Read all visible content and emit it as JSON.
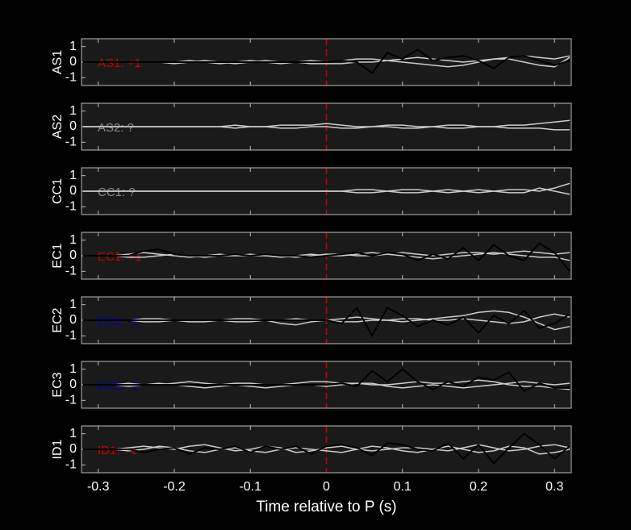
{
  "chart_data": [
    {
      "type": "line",
      "ylabel": "AS1",
      "annotation": "AS1: +1",
      "annotation_color": "#cc0000",
      "vline": 0,
      "vline_color": "#cc0000",
      "xlim": [
        -0.322,
        0.322
      ],
      "ylim": [
        -1.5,
        1.5
      ],
      "yticks": [
        -1,
        0,
        1
      ],
      "xticks": [
        -0.3,
        -0.2,
        -0.1,
        0,
        0.1,
        0.2,
        0.3
      ],
      "x": [
        -0.32,
        -0.3,
        -0.28,
        -0.26,
        -0.24,
        -0.22,
        -0.2,
        -0.18,
        -0.16,
        -0.14,
        -0.12,
        -0.1,
        -0.08,
        -0.06,
        -0.04,
        -0.02,
        0,
        0.02,
        0.04,
        0.06,
        0.08,
        0.1,
        0.12,
        0.14,
        0.16,
        0.18,
        0.2,
        0.22,
        0.24,
        0.26,
        0.28,
        0.3,
        0.32
      ],
      "series": [
        {
          "color": "#cccccc",
          "values": [
            0,
            0,
            0,
            0,
            0,
            0,
            0,
            0.1,
            0,
            -0.1,
            0,
            0.1,
            0,
            -0.1,
            0,
            0.1,
            0,
            0.1,
            0.2,
            0.2,
            0.1,
            0,
            -0.1,
            -0.2,
            -0.3,
            -0.2,
            0,
            0.2,
            0.2,
            0,
            -0.2,
            -0.3,
            0.3
          ]
        },
        {
          "color": "#cccccc",
          "values": [
            0,
            0,
            0,
            0,
            0,
            0,
            -0.1,
            0,
            0.1,
            0,
            -0.1,
            0,
            0.1,
            0,
            0,
            -0.1,
            -0.1,
            -0.1,
            0,
            0,
            0.1,
            0.2,
            0.3,
            0.2,
            0.1,
            0,
            0.1,
            0.2,
            0.3,
            0.4,
            0.3,
            0.2,
            0.4
          ]
        },
        {
          "color": "#000000",
          "values": [
            0,
            0,
            0,
            0,
            0,
            0,
            0,
            0,
            0,
            0,
            0,
            0,
            0,
            0,
            0,
            0,
            0,
            0.1,
            0,
            -0.7,
            0.6,
            0.2,
            0.8,
            0.1,
            0.3,
            0.4,
            0.1,
            -0.4,
            0.3,
            0.4,
            0.1,
            -0.2,
            0.1
          ]
        }
      ]
    },
    {
      "type": "line",
      "ylabel": "AS2",
      "annotation": "AS2: ?",
      "annotation_color": "#888888",
      "vline": 0,
      "vline_color": "#cc0000",
      "xlim": [
        -0.322,
        0.322
      ],
      "ylim": [
        -1.5,
        1.5
      ],
      "yticks": [
        -1,
        0,
        1
      ],
      "xticks": [
        -0.3,
        -0.2,
        -0.1,
        0,
        0.1,
        0.2,
        0.3
      ],
      "x": [
        -0.32,
        -0.3,
        -0.28,
        -0.26,
        -0.24,
        -0.22,
        -0.2,
        -0.18,
        -0.16,
        -0.14,
        -0.12,
        -0.1,
        -0.08,
        -0.06,
        -0.04,
        -0.02,
        0,
        0.02,
        0.04,
        0.06,
        0.08,
        0.1,
        0.12,
        0.14,
        0.16,
        0.18,
        0.2,
        0.22,
        0.24,
        0.26,
        0.28,
        0.3,
        0.32
      ],
      "series": [
        {
          "color": "#cccccc",
          "values": [
            0,
            0,
            0,
            0,
            0,
            0,
            0,
            0,
            0,
            0,
            0.1,
            0,
            0,
            0.1,
            0.1,
            0.1,
            0.2,
            0.1,
            0,
            0,
            0.1,
            0.1,
            0,
            0,
            0.1,
            0.1,
            0,
            0,
            0.1,
            0.1,
            0.2,
            0.3,
            0.4
          ]
        },
        {
          "color": "#cccccc",
          "values": [
            0,
            0,
            0,
            0,
            0,
            0,
            0,
            0,
            0,
            0,
            -0.1,
            0,
            0,
            -0.1,
            -0.1,
            0,
            0,
            -0.1,
            -0.1,
            0,
            0,
            -0.1,
            -0.1,
            0,
            -0.1,
            -0.1,
            0,
            0,
            -0.1,
            -0.1,
            -0.1,
            -0.2,
            -0.2
          ]
        }
      ]
    },
    {
      "type": "line",
      "ylabel": "CC1",
      "annotation": "CC1: ?",
      "annotation_color": "#888888",
      "vline": 0,
      "vline_color": "#cc0000",
      "xlim": [
        -0.322,
        0.322
      ],
      "ylim": [
        -1.5,
        1.5
      ],
      "yticks": [
        -1,
        0,
        1
      ],
      "xticks": [
        -0.3,
        -0.2,
        -0.1,
        0,
        0.1,
        0.2,
        0.3
      ],
      "x": [
        -0.32,
        -0.3,
        -0.28,
        -0.26,
        -0.24,
        -0.22,
        -0.2,
        -0.18,
        -0.16,
        -0.14,
        -0.12,
        -0.1,
        -0.08,
        -0.06,
        -0.04,
        -0.02,
        0,
        0.02,
        0.04,
        0.06,
        0.08,
        0.1,
        0.12,
        0.14,
        0.16,
        0.18,
        0.2,
        0.22,
        0.24,
        0.26,
        0.28,
        0.3,
        0.32
      ],
      "series": [
        {
          "color": "#cccccc",
          "values": [
            0,
            0,
            0,
            0,
            0,
            0,
            0,
            0,
            0,
            0,
            0,
            0,
            0,
            0,
            0,
            0,
            0,
            0,
            0.1,
            0.1,
            0,
            -0.1,
            -0.1,
            0,
            0.1,
            0,
            -0.1,
            0,
            0.1,
            0.1,
            0,
            0.2,
            0.5
          ]
        },
        {
          "color": "#cccccc",
          "values": [
            0,
            0,
            0,
            0,
            0,
            0,
            0,
            0,
            0,
            0,
            0,
            0,
            0,
            0,
            0,
            0,
            0,
            0,
            -0.1,
            -0.1,
            0,
            0.1,
            0.1,
            0,
            -0.1,
            0,
            0.1,
            0,
            -0.1,
            -0.1,
            0.2,
            0,
            -0.2
          ]
        }
      ]
    },
    {
      "type": "line",
      "ylabel": "EC1",
      "annotation": "EC1: +1",
      "annotation_color": "#cc0000",
      "vline": 0,
      "vline_color": "#cc0000",
      "xlim": [
        -0.322,
        0.322
      ],
      "ylim": [
        -1.5,
        1.5
      ],
      "yticks": [
        -1,
        0,
        1
      ],
      "xticks": [
        -0.3,
        -0.2,
        -0.1,
        0,
        0.1,
        0.2,
        0.3
      ],
      "x": [
        -0.32,
        -0.3,
        -0.28,
        -0.26,
        -0.24,
        -0.22,
        -0.2,
        -0.18,
        -0.16,
        -0.14,
        -0.12,
        -0.1,
        -0.08,
        -0.06,
        -0.04,
        -0.02,
        0,
        0.02,
        0.04,
        0.06,
        0.08,
        0.1,
        0.12,
        0.14,
        0.16,
        0.18,
        0.2,
        0.22,
        0.24,
        0.26,
        0.28,
        0.3,
        0.32
      ],
      "series": [
        {
          "color": "#cccccc",
          "values": [
            0,
            0,
            0,
            0.1,
            0.2,
            0.1,
            0,
            -0.1,
            0,
            0.1,
            0,
            0,
            0,
            -0.1,
            0,
            0.1,
            0,
            0,
            0.1,
            0.2,
            0.1,
            0,
            -0.1,
            -0.2,
            -0.1,
            0,
            0.1,
            0.2,
            0.1,
            0,
            -0.1,
            -0.1,
            -0.3
          ]
        },
        {
          "color": "#cccccc",
          "values": [
            0,
            0,
            0,
            -0.1,
            -0.1,
            0,
            0.1,
            0,
            -0.1,
            0,
            0,
            0.1,
            0,
            0,
            -0.1,
            0,
            0.1,
            0.1,
            0,
            0,
            0.1,
            0.2,
            0.1,
            0,
            0.1,
            0.2,
            0.2,
            0.1,
            0.2,
            0.3,
            0.2,
            0.1,
            0.2
          ]
        },
        {
          "color": "#000000",
          "values": [
            0,
            0,
            0,
            0,
            0.3,
            0.4,
            0.1,
            0,
            0,
            0,
            0.1,
            0,
            0.1,
            0,
            0,
            -0.1,
            0,
            0.1,
            0.2,
            0,
            0.2,
            0.1,
            -0.3,
            0.1,
            -0.2,
            0.5,
            -0.3,
            0.7,
            0,
            -0.3,
            0.8,
            0.2,
            -1.0
          ]
        }
      ]
    },
    {
      "type": "line",
      "ylabel": "EC2",
      "annotation": "EC2: -1",
      "annotation_color": "#0000aa",
      "vline": 0,
      "vline_color": "#cc0000",
      "xlim": [
        -0.322,
        0.322
      ],
      "ylim": [
        -1.5,
        1.5
      ],
      "yticks": [
        -1,
        0,
        1
      ],
      "xticks": [
        -0.3,
        -0.2,
        -0.1,
        0,
        0.1,
        0.2,
        0.3
      ],
      "x": [
        -0.32,
        -0.3,
        -0.28,
        -0.26,
        -0.24,
        -0.22,
        -0.2,
        -0.18,
        -0.16,
        -0.14,
        -0.12,
        -0.1,
        -0.08,
        -0.06,
        -0.04,
        -0.02,
        0,
        0.02,
        0.04,
        0.06,
        0.08,
        0.1,
        0.12,
        0.14,
        0.16,
        0.18,
        0.2,
        0.22,
        0.24,
        0.26,
        0.28,
        0.3,
        0.32
      ],
      "series": [
        {
          "color": "#cccccc",
          "values": [
            0,
            0,
            0,
            0,
            0.1,
            0.1,
            0,
            -0.1,
            -0.1,
            0,
            0.1,
            0.1,
            0,
            -0.2,
            -0.3,
            -0.1,
            0,
            0.1,
            0.2,
            0.1,
            0,
            -0.1,
            0,
            0.1,
            0.2,
            0.3,
            0.5,
            0.6,
            0.5,
            0.2,
            -0.2,
            -0.6,
            -0.4
          ]
        },
        {
          "color": "#cccccc",
          "values": [
            0,
            0,
            0,
            0,
            -0.1,
            -0.1,
            0,
            0,
            0,
            0,
            -0.1,
            -0.1,
            0,
            0,
            0.1,
            0,
            0,
            -0.1,
            -0.1,
            0,
            0,
            0.1,
            0.1,
            0,
            0,
            0.1,
            0,
            -0.1,
            -0.2,
            -0.1,
            0.2,
            0.4,
            0.2
          ]
        },
        {
          "color": "#000000",
          "values": [
            0,
            0,
            0,
            0,
            0,
            0,
            0,
            0,
            0,
            0,
            0,
            0,
            0,
            0,
            0,
            0,
            0,
            -0.2,
            0.8,
            -1.0,
            0.8,
            0.3,
            -0.4,
            0,
            -0.3,
            0.2,
            -0.8,
            0.3,
            -0.2,
            0.6,
            -0.5,
            -0.2,
            0.4
          ]
        }
      ]
    },
    {
      "type": "line",
      "ylabel": "EC3",
      "annotation": "EC3: -1",
      "annotation_color": "#0000aa",
      "vline": 0,
      "vline_color": "#cc0000",
      "xlim": [
        -0.322,
        0.322
      ],
      "ylim": [
        -1.5,
        1.5
      ],
      "yticks": [
        -1,
        0,
        1
      ],
      "xticks": [
        -0.3,
        -0.2,
        -0.1,
        0,
        0.1,
        0.2,
        0.3
      ],
      "x": [
        -0.32,
        -0.3,
        -0.28,
        -0.26,
        -0.24,
        -0.22,
        -0.2,
        -0.18,
        -0.16,
        -0.14,
        -0.12,
        -0.1,
        -0.08,
        -0.06,
        -0.04,
        -0.02,
        0,
        0.02,
        0.04,
        0.06,
        0.08,
        0.1,
        0.12,
        0.14,
        0.16,
        0.18,
        0.2,
        0.22,
        0.24,
        0.26,
        0.28,
        0.3,
        0.32
      ],
      "series": [
        {
          "color": "#cccccc",
          "values": [
            0,
            0,
            0,
            0.1,
            0,
            0,
            0.1,
            0.2,
            0.1,
            0,
            0.1,
            0.1,
            0,
            0,
            0.1,
            0.2,
            0.2,
            0.1,
            0.1,
            0,
            0,
            0.1,
            0.2,
            0.1,
            0.1,
            0.2,
            0.3,
            0.2,
            0,
            -0.1,
            -0.1,
            -0.2,
            -0.3
          ]
        },
        {
          "color": "#cccccc",
          "values": [
            0,
            0,
            0,
            -0.1,
            0,
            0.1,
            0,
            -0.1,
            -0.2,
            -0.1,
            0,
            -0.1,
            -0.2,
            -0.1,
            0,
            0,
            -0.1,
            0,
            0.1,
            0.1,
            -0.1,
            -0.2,
            -0.1,
            0,
            -0.1,
            -0.2,
            -0.1,
            0,
            0.1,
            0.2,
            0.1,
            0,
            0.1
          ]
        },
        {
          "color": "#000000",
          "values": [
            0,
            0,
            0,
            0,
            0,
            0,
            0,
            0,
            0,
            0,
            0,
            0,
            0,
            0,
            0,
            0,
            0,
            0.1,
            -0.1,
            0.9,
            0.2,
            1.0,
            0.2,
            -0.3,
            0.2,
            -0.1,
            0.5,
            0.3,
            0.8,
            -0.4,
            0.1,
            -0.2,
            -0.2
          ]
        }
      ]
    },
    {
      "type": "line",
      "ylabel": "ID1",
      "annotation": "ID1: +1",
      "annotation_color": "#cc0000",
      "vline": 0,
      "vline_color": "#cc0000",
      "xlim": [
        -0.322,
        0.322
      ],
      "ylim": [
        -1.5,
        1.5
      ],
      "yticks": [
        -1,
        0,
        1
      ],
      "xticks": [
        -0.3,
        -0.2,
        -0.1,
        0,
        0.1,
        0.2,
        0.3
      ],
      "xlabel": "Time relative to P (s)",
      "x": [
        -0.32,
        -0.3,
        -0.28,
        -0.26,
        -0.24,
        -0.22,
        -0.2,
        -0.18,
        -0.16,
        -0.14,
        -0.12,
        -0.1,
        -0.08,
        -0.06,
        -0.04,
        -0.02,
        0,
        0.02,
        0.04,
        0.06,
        0.08,
        0.1,
        0.12,
        0.14,
        0.16,
        0.18,
        0.2,
        0.22,
        0.24,
        0.26,
        0.28,
        0.3,
        0.32
      ],
      "series": [
        {
          "color": "#cccccc",
          "values": [
            0,
            0,
            0,
            0.1,
            0.2,
            0.1,
            0,
            0.2,
            0.3,
            0.1,
            -0.1,
            0,
            0.2,
            0.1,
            -0.2,
            -0.1,
            0.1,
            0.2,
            0,
            -0.1,
            0,
            0.1,
            0.1,
            0,
            -0.1,
            0.1,
            0.3,
            0.1,
            -0.1,
            0,
            0.2,
            0.3,
            0.1
          ]
        },
        {
          "color": "#cccccc",
          "values": [
            0,
            0,
            0,
            -0.1,
            0,
            0.2,
            0.1,
            -0.1,
            -0.2,
            0,
            0.1,
            -0.1,
            -0.2,
            0,
            0.1,
            0,
            -0.1,
            -0.2,
            0,
            0.2,
            0.1,
            -0.1,
            -0.2,
            0,
            0.2,
            0,
            -0.2,
            -0.1,
            0.2,
            0.1,
            -0.3,
            -0.2,
            0
          ]
        },
        {
          "color": "#000000",
          "values": [
            0,
            0,
            0,
            0,
            -0.2,
            0,
            0.1,
            -0.3,
            0.1,
            0,
            0.2,
            -0.2,
            0.2,
            0,
            0.2,
            -0.3,
            0.2,
            0.3,
            0.1,
            -0.4,
            0.4,
            0.3,
            0,
            -0.1,
            0.4,
            -0.6,
            0.3,
            -0.9,
            0.1,
            1.0,
            0.3,
            -0.6,
            0.2
          ]
        }
      ]
    }
  ]
}
